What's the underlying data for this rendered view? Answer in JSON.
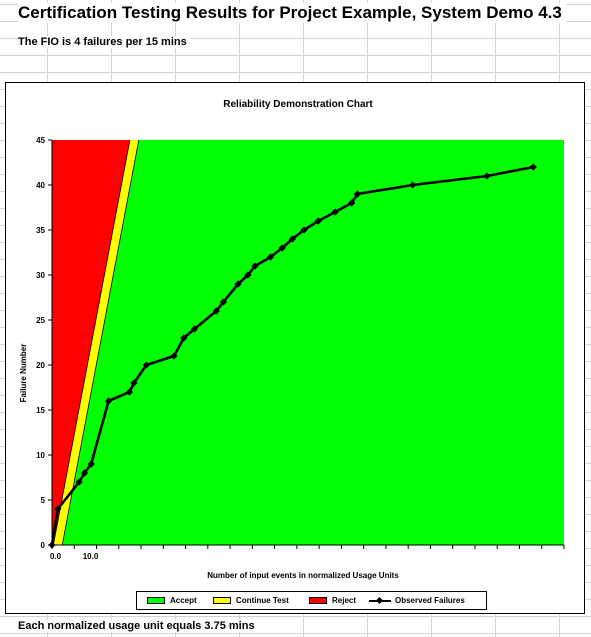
{
  "header": {
    "title": "Certification Testing Results for Project Example, System Demo 4.3",
    "fio_text": "The FIO is 4 failures per 15 mins",
    "footer_text": "Each normalized usage unit equals 3.75 mins"
  },
  "legend": {
    "accept": "Accept",
    "continue": "Continue Test",
    "reject": "Reject",
    "observed": "Observed Failures"
  },
  "colors": {
    "accept": "#00ff00",
    "continue": "#ffff00",
    "reject": "#ff0000",
    "observed": "#000000"
  },
  "chart_data": {
    "type": "line",
    "title": "Reliability Demonstration Chart",
    "xlabel": "Number of input events in normalized Usage Units",
    "ylabel": "Failure Number",
    "xlim": [
      0,
      115
    ],
    "ylim": [
      0,
      45
    ],
    "x_ticks": [
      "0.0",
      "10.0"
    ],
    "y_ticks": [
      0,
      5,
      10,
      15,
      20,
      25,
      30,
      35,
      40,
      45
    ],
    "grid": false,
    "legend_position": "bottom",
    "regions": [
      {
        "name": "Reject",
        "boundary": [
          [
            0.3,
            0
          ],
          [
            17.5,
            45
          ]
        ]
      },
      {
        "name": "Continue Test",
        "boundary": [
          [
            2.3,
            0
          ],
          [
            19.5,
            45
          ]
        ]
      },
      {
        "name": "Accept"
      }
    ],
    "series": [
      {
        "name": "Observed Failures",
        "points": [
          [
            0,
            0
          ],
          [
            1.3,
            4
          ],
          [
            6.1,
            7
          ],
          [
            7.3,
            8
          ],
          [
            8.8,
            9
          ],
          [
            12.7,
            16
          ],
          [
            17.4,
            17
          ],
          [
            18.4,
            18
          ],
          [
            21.2,
            20
          ],
          [
            27.4,
            21
          ],
          [
            29.6,
            23
          ],
          [
            32.0,
            24
          ],
          [
            36.9,
            26
          ],
          [
            38.5,
            27
          ],
          [
            41.8,
            29
          ],
          [
            44.0,
            30
          ],
          [
            45.6,
            31
          ],
          [
            49.1,
            32
          ],
          [
            51.7,
            33
          ],
          [
            54.0,
            34
          ],
          [
            56.6,
            35
          ],
          [
            59.8,
            36
          ],
          [
            63.6,
            37
          ],
          [
            67.3,
            38
          ],
          [
            68.6,
            39
          ],
          [
            81.0,
            40
          ],
          [
            97.7,
            41
          ],
          [
            108.1,
            42
          ]
        ]
      }
    ]
  }
}
